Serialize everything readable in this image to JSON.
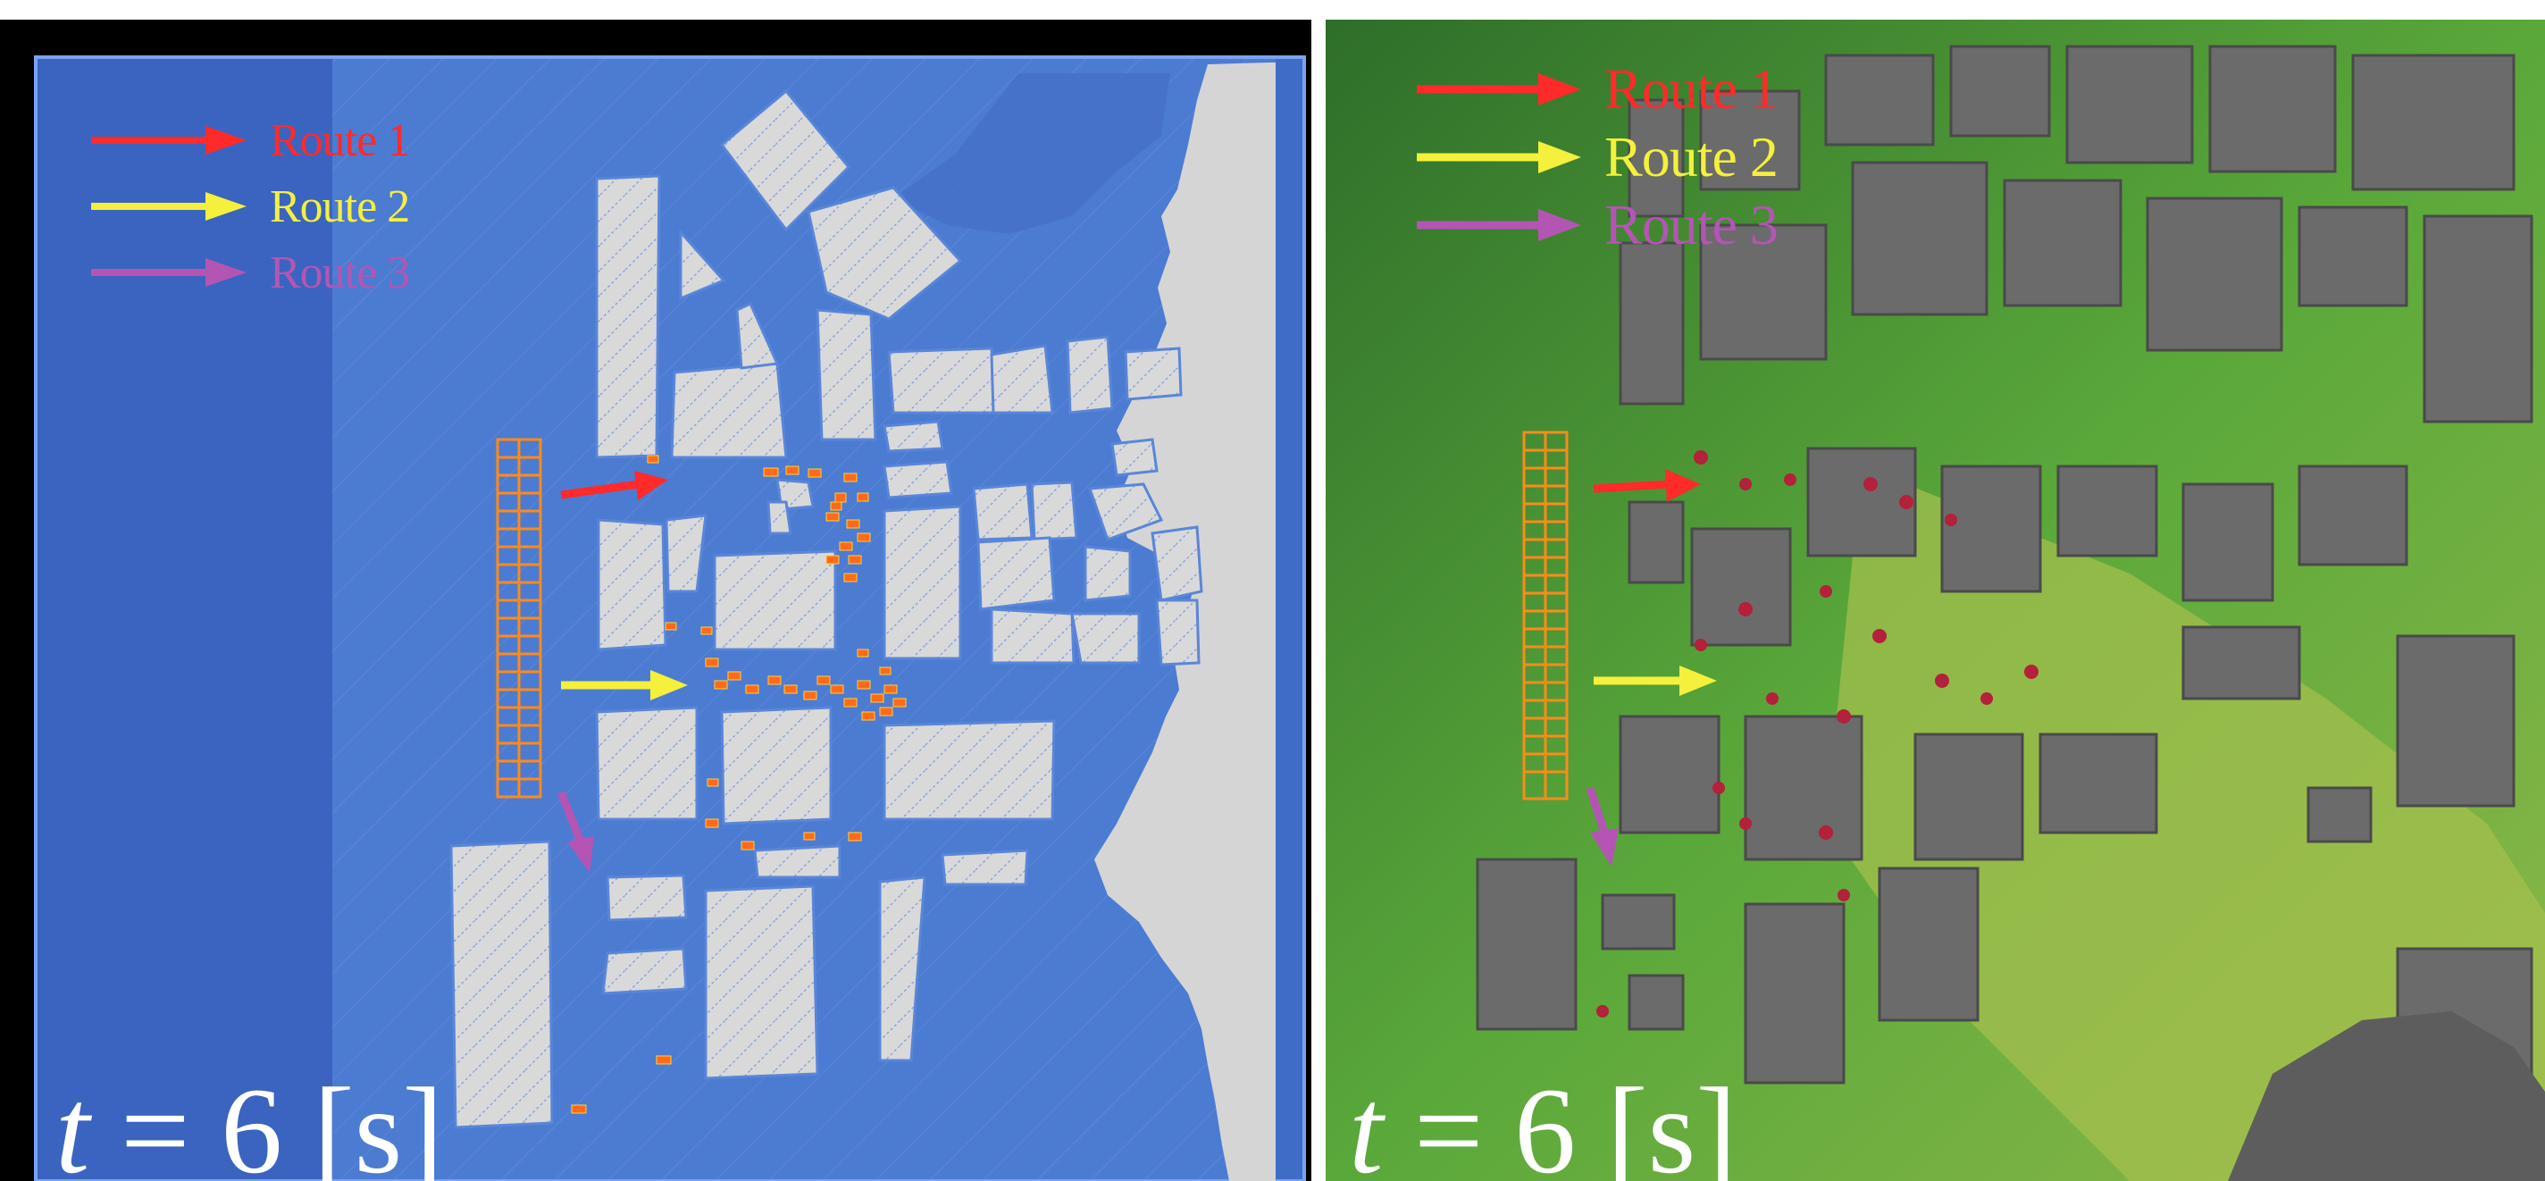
{
  "colors": {
    "route1": "#ff2a2a",
    "route2": "#f4f03c",
    "route3": "#b455b4",
    "water": "#4a77cf",
    "building": "#d8d8d8",
    "evacuees": "#ff6a1a",
    "terrain": "#4f9a3a"
  },
  "left_panel": {
    "legend": [
      {
        "label": "Route 1",
        "color": "#ff2a2a"
      },
      {
        "label": "Route 2",
        "color": "#f4f03c"
      },
      {
        "label": "Route 3",
        "color": "#b455b4"
      }
    ],
    "time": {
      "variable": "t",
      "equals": "=",
      "value": "6",
      "unit": "[s]"
    }
  },
  "right_panel": {
    "legend": [
      {
        "label": "Route 1",
        "color": "#ff2a2a"
      },
      {
        "label": "Route 2",
        "color": "#f4f03c"
      },
      {
        "label": "Route 3",
        "color": "#b455b4"
      }
    ],
    "time": {
      "variable": "t",
      "equals": "=",
      "value": "6",
      "unit": "[s]"
    }
  },
  "icons": [
    "arrow-right-icon",
    "evacuee-block-icon",
    "building-grid-icon"
  ]
}
